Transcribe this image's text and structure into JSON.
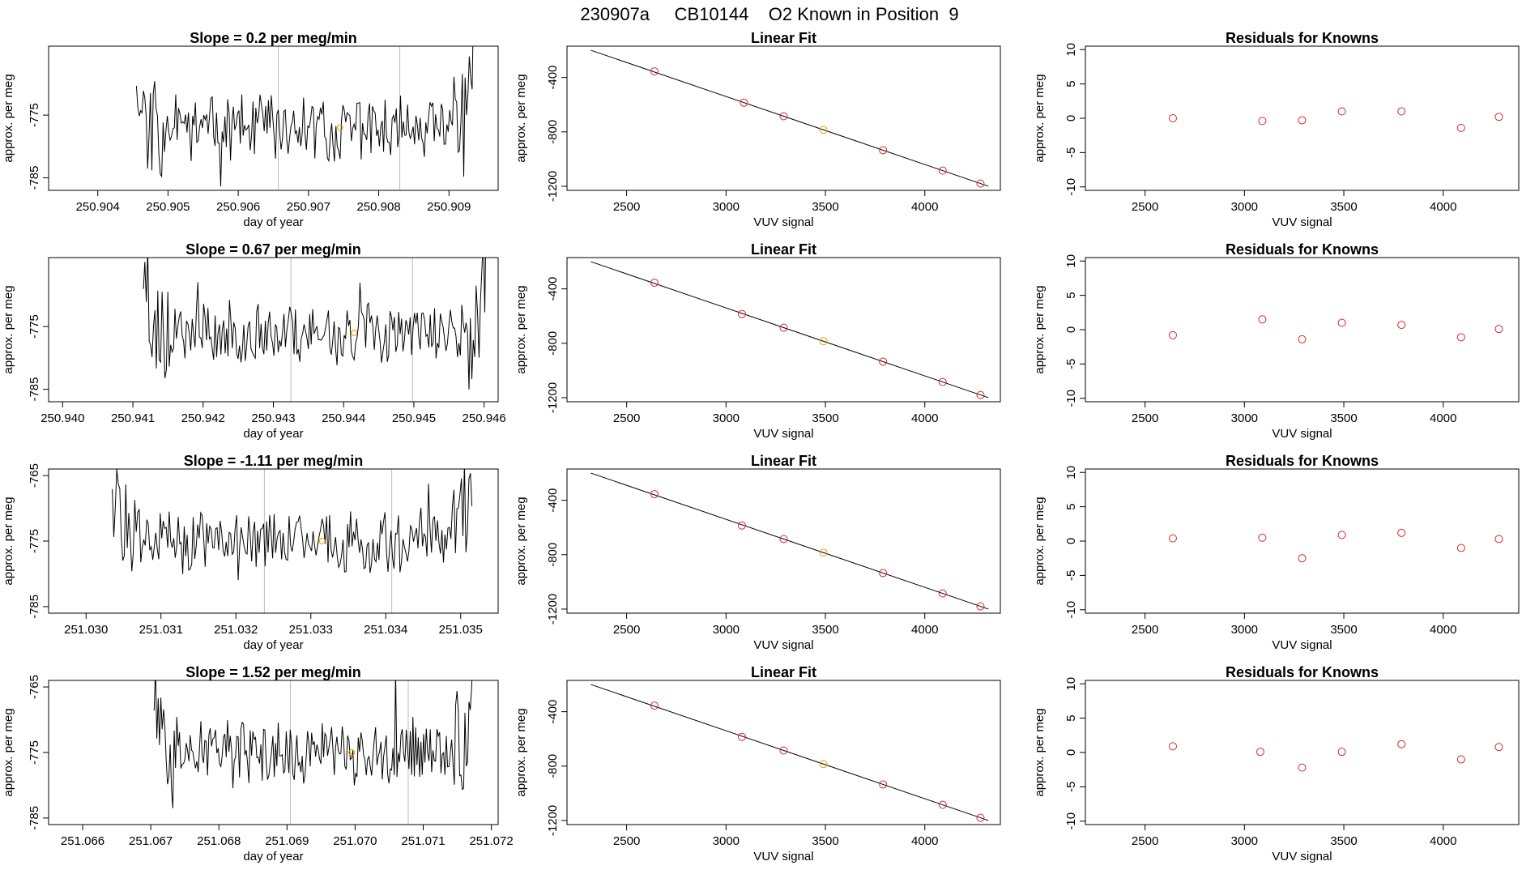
{
  "suptitle": "230907a     CB10144    O2 Known in Position  9",
  "colors": {
    "trace": "#000000",
    "known": "#e69f00",
    "point": "#d62728",
    "fitline": "#000000",
    "refline": "#bbbbbb",
    "axis": "#000000"
  },
  "chart_data": [
    {
      "type": "line",
      "panel": "timeseries",
      "title": "Slope =  0.2  per meg/min",
      "xlabel": "day of year",
      "ylabel": "approx. per meg",
      "xlim": [
        250.9033,
        250.9097
      ],
      "ylim": [
        -787,
        -764
      ],
      "xticks": [
        "250.904",
        "250.905",
        "250.906",
        "250.907",
        "250.908",
        "250.909"
      ],
      "yticks": [
        "-785",
        "-775"
      ],
      "start": 250.90455,
      "end": 250.90935,
      "base": -777,
      "seed": 11,
      "refs": [
        250.90657,
        250.9083
      ],
      "known_point": {
        "x": 250.90745,
        "y": -777
      }
    },
    {
      "type": "scatter",
      "panel": "linear_fit",
      "title": "Linear Fit",
      "xlabel": "VUV signal",
      "ylabel": "approx. per meg",
      "xlim": [
        2200,
        4380
      ],
      "ylim": [
        -1230,
        -170
      ],
      "xticks": [
        "2500",
        "3000",
        "3500",
        "4000"
      ],
      "yticks": [
        "-400",
        "-800",
        "-1200"
      ],
      "x": [
        2640,
        3090,
        3290,
        3490,
        3790,
        4090,
        4280
      ],
      "y": [
        -355,
        -585,
        -685,
        -785,
        -935,
        -1085,
        -1180
      ],
      "highlight_index": 3,
      "line": [
        [
          2320,
          -200
        ],
        [
          4320,
          -1200
        ]
      ]
    },
    {
      "type": "scatter",
      "panel": "residuals",
      "title": "Residuals for Knowns",
      "xlabel": "VUV signal",
      "ylabel": "approx. per meg",
      "xlim": [
        2200,
        4380
      ],
      "ylim": [
        -10.5,
        10.5
      ],
      "xticks": [
        "2500",
        "3000",
        "3500",
        "4000"
      ],
      "yticks": [
        "-10",
        "-5",
        "0",
        "5",
        "10"
      ],
      "x": [
        2640,
        3090,
        3290,
        3490,
        3790,
        4090,
        4280
      ],
      "y": [
        0.0,
        -0.4,
        -0.3,
        1.0,
        1.0,
        -1.4,
        0.2
      ]
    },
    {
      "type": "line",
      "panel": "timeseries",
      "title": "Slope =  0.67  per meg/min",
      "xlabel": "day of year",
      "ylabel": "approx. per meg",
      "xlim": [
        250.9398,
        250.9462
      ],
      "ylim": [
        -787,
        -764
      ],
      "xticks": [
        "250.940",
        "250.941",
        "250.942",
        "250.943",
        "250.944",
        "250.945",
        "250.946"
      ],
      "yticks": [
        "-785",
        "-775"
      ],
      "start": 250.94115,
      "end": 250.94605,
      "base": -776,
      "seed": 23,
      "refs": [
        250.94325,
        250.94498
      ],
      "known_point": {
        "x": 250.94415,
        "y": -776
      }
    },
    {
      "type": "scatter",
      "panel": "linear_fit",
      "title": "Linear Fit",
      "xlabel": "VUV signal",
      "ylabel": "approx. per meg",
      "xlim": [
        2200,
        4380
      ],
      "ylim": [
        -1230,
        -170
      ],
      "xticks": [
        "2500",
        "3000",
        "3500",
        "4000"
      ],
      "yticks": [
        "-400",
        "-800",
        "-1200"
      ],
      "x": [
        2640,
        3080,
        3290,
        3490,
        3790,
        4090,
        4280
      ],
      "y": [
        -355,
        -585,
        -685,
        -785,
        -935,
        -1085,
        -1180
      ],
      "highlight_index": 3,
      "line": [
        [
          2320,
          -200
        ],
        [
          4320,
          -1200
        ]
      ]
    },
    {
      "type": "scatter",
      "panel": "residuals",
      "title": "Residuals for Knowns",
      "xlabel": "VUV signal",
      "ylabel": "approx. per meg",
      "xlim": [
        2200,
        4380
      ],
      "ylim": [
        -10.5,
        10.5
      ],
      "xticks": [
        "2500",
        "3000",
        "3500",
        "4000"
      ],
      "yticks": [
        "-10",
        "-5",
        "0",
        "5",
        "10"
      ],
      "x": [
        2640,
        3090,
        3290,
        3490,
        3790,
        4090,
        4280
      ],
      "y": [
        -0.8,
        1.5,
        -1.4,
        1.0,
        0.7,
        -1.1,
        0.1
      ]
    },
    {
      "type": "line",
      "panel": "timeseries",
      "title": "Slope =  -1.11  per meg/min",
      "xlabel": "day of year",
      "ylabel": "approx. per meg",
      "xlim": [
        251.0295,
        251.0355
      ],
      "ylim": [
        -786,
        -764
      ],
      "xticks": [
        "251.030",
        "251.031",
        "251.032",
        "251.033",
        "251.034",
        "251.035"
      ],
      "yticks": [
        "-765",
        "-775",
        "-785"
      ],
      "start": 251.03035,
      "end": 251.03515,
      "base": -775,
      "seed": 37,
      "refs": [
        251.03238,
        251.03408
      ],
      "known_point": {
        "x": 251.03315,
        "y": -775
      }
    },
    {
      "type": "scatter",
      "panel": "linear_fit",
      "title": "Linear Fit",
      "xlabel": "VUV signal",
      "ylabel": "approx. per meg",
      "xlim": [
        2200,
        4380
      ],
      "ylim": [
        -1230,
        -170
      ],
      "xticks": [
        "2500",
        "3000",
        "3500",
        "4000"
      ],
      "yticks": [
        "-400",
        "-800",
        "-1200"
      ],
      "x": [
        2640,
        3080,
        3290,
        3490,
        3790,
        4090,
        4280
      ],
      "y": [
        -355,
        -585,
        -685,
        -785,
        -935,
        -1085,
        -1180
      ],
      "highlight_index": 3,
      "line": [
        [
          2320,
          -200
        ],
        [
          4320,
          -1200
        ]
      ]
    },
    {
      "type": "scatter",
      "panel": "residuals",
      "title": "Residuals for Knowns",
      "xlabel": "VUV signal",
      "ylabel": "approx. per meg",
      "xlim": [
        2200,
        4380
      ],
      "ylim": [
        -10.5,
        10.5
      ],
      "xticks": [
        "2500",
        "3000",
        "3500",
        "4000"
      ],
      "yticks": [
        "-10",
        "-5",
        "0",
        "5",
        "10"
      ],
      "x": [
        2640,
        3090,
        3290,
        3490,
        3790,
        4090,
        4280
      ],
      "y": [
        0.4,
        0.5,
        -2.5,
        0.9,
        1.2,
        -1.0,
        0.3
      ]
    },
    {
      "type": "line",
      "panel": "timeseries",
      "title": "Slope =  1.52  per meg/min",
      "xlabel": "day of year",
      "ylabel": "approx. per meg",
      "xlim": [
        251.0655,
        251.0721
      ],
      "ylim": [
        -786,
        -764
      ],
      "xticks": [
        "251.066",
        "251.067",
        "251.068",
        "251.069",
        "251.070",
        "251.071",
        "251.072"
      ],
      "yticks": [
        "-765",
        "-775",
        "-785"
      ],
      "start": 251.06705,
      "end": 251.07175,
      "base": -775,
      "seed": 53,
      "refs": [
        251.06905,
        251.07078
      ],
      "known_point": {
        "x": 251.06995,
        "y": -775
      }
    },
    {
      "type": "scatter",
      "panel": "linear_fit",
      "title": "Linear Fit",
      "xlabel": "VUV signal",
      "ylabel": "approx. per meg",
      "xlim": [
        2200,
        4380
      ],
      "ylim": [
        -1230,
        -170
      ],
      "xticks": [
        "2500",
        "3000",
        "3500",
        "4000"
      ],
      "yticks": [
        "-400",
        "-800",
        "-1200"
      ],
      "x": [
        2640,
        3080,
        3290,
        3490,
        3790,
        4090,
        4280
      ],
      "y": [
        -355,
        -585,
        -685,
        -785,
        -935,
        -1085,
        -1180
      ],
      "highlight_index": 3,
      "line": [
        [
          2320,
          -200
        ],
        [
          4320,
          -1200
        ]
      ]
    },
    {
      "type": "scatter",
      "panel": "residuals",
      "title": "Residuals for Knowns",
      "xlabel": "VUV signal",
      "ylabel": "approx. per meg",
      "xlim": [
        2200,
        4380
      ],
      "ylim": [
        -10.5,
        10.5
      ],
      "xticks": [
        "2500",
        "3000",
        "3500",
        "4000"
      ],
      "yticks": [
        "-10",
        "-5",
        "0",
        "5",
        "10"
      ],
      "x": [
        2640,
        3080,
        3290,
        3490,
        3790,
        4090,
        4280
      ],
      "y": [
        0.9,
        0.1,
        -2.2,
        0.1,
        1.2,
        -1.0,
        0.8
      ]
    }
  ]
}
